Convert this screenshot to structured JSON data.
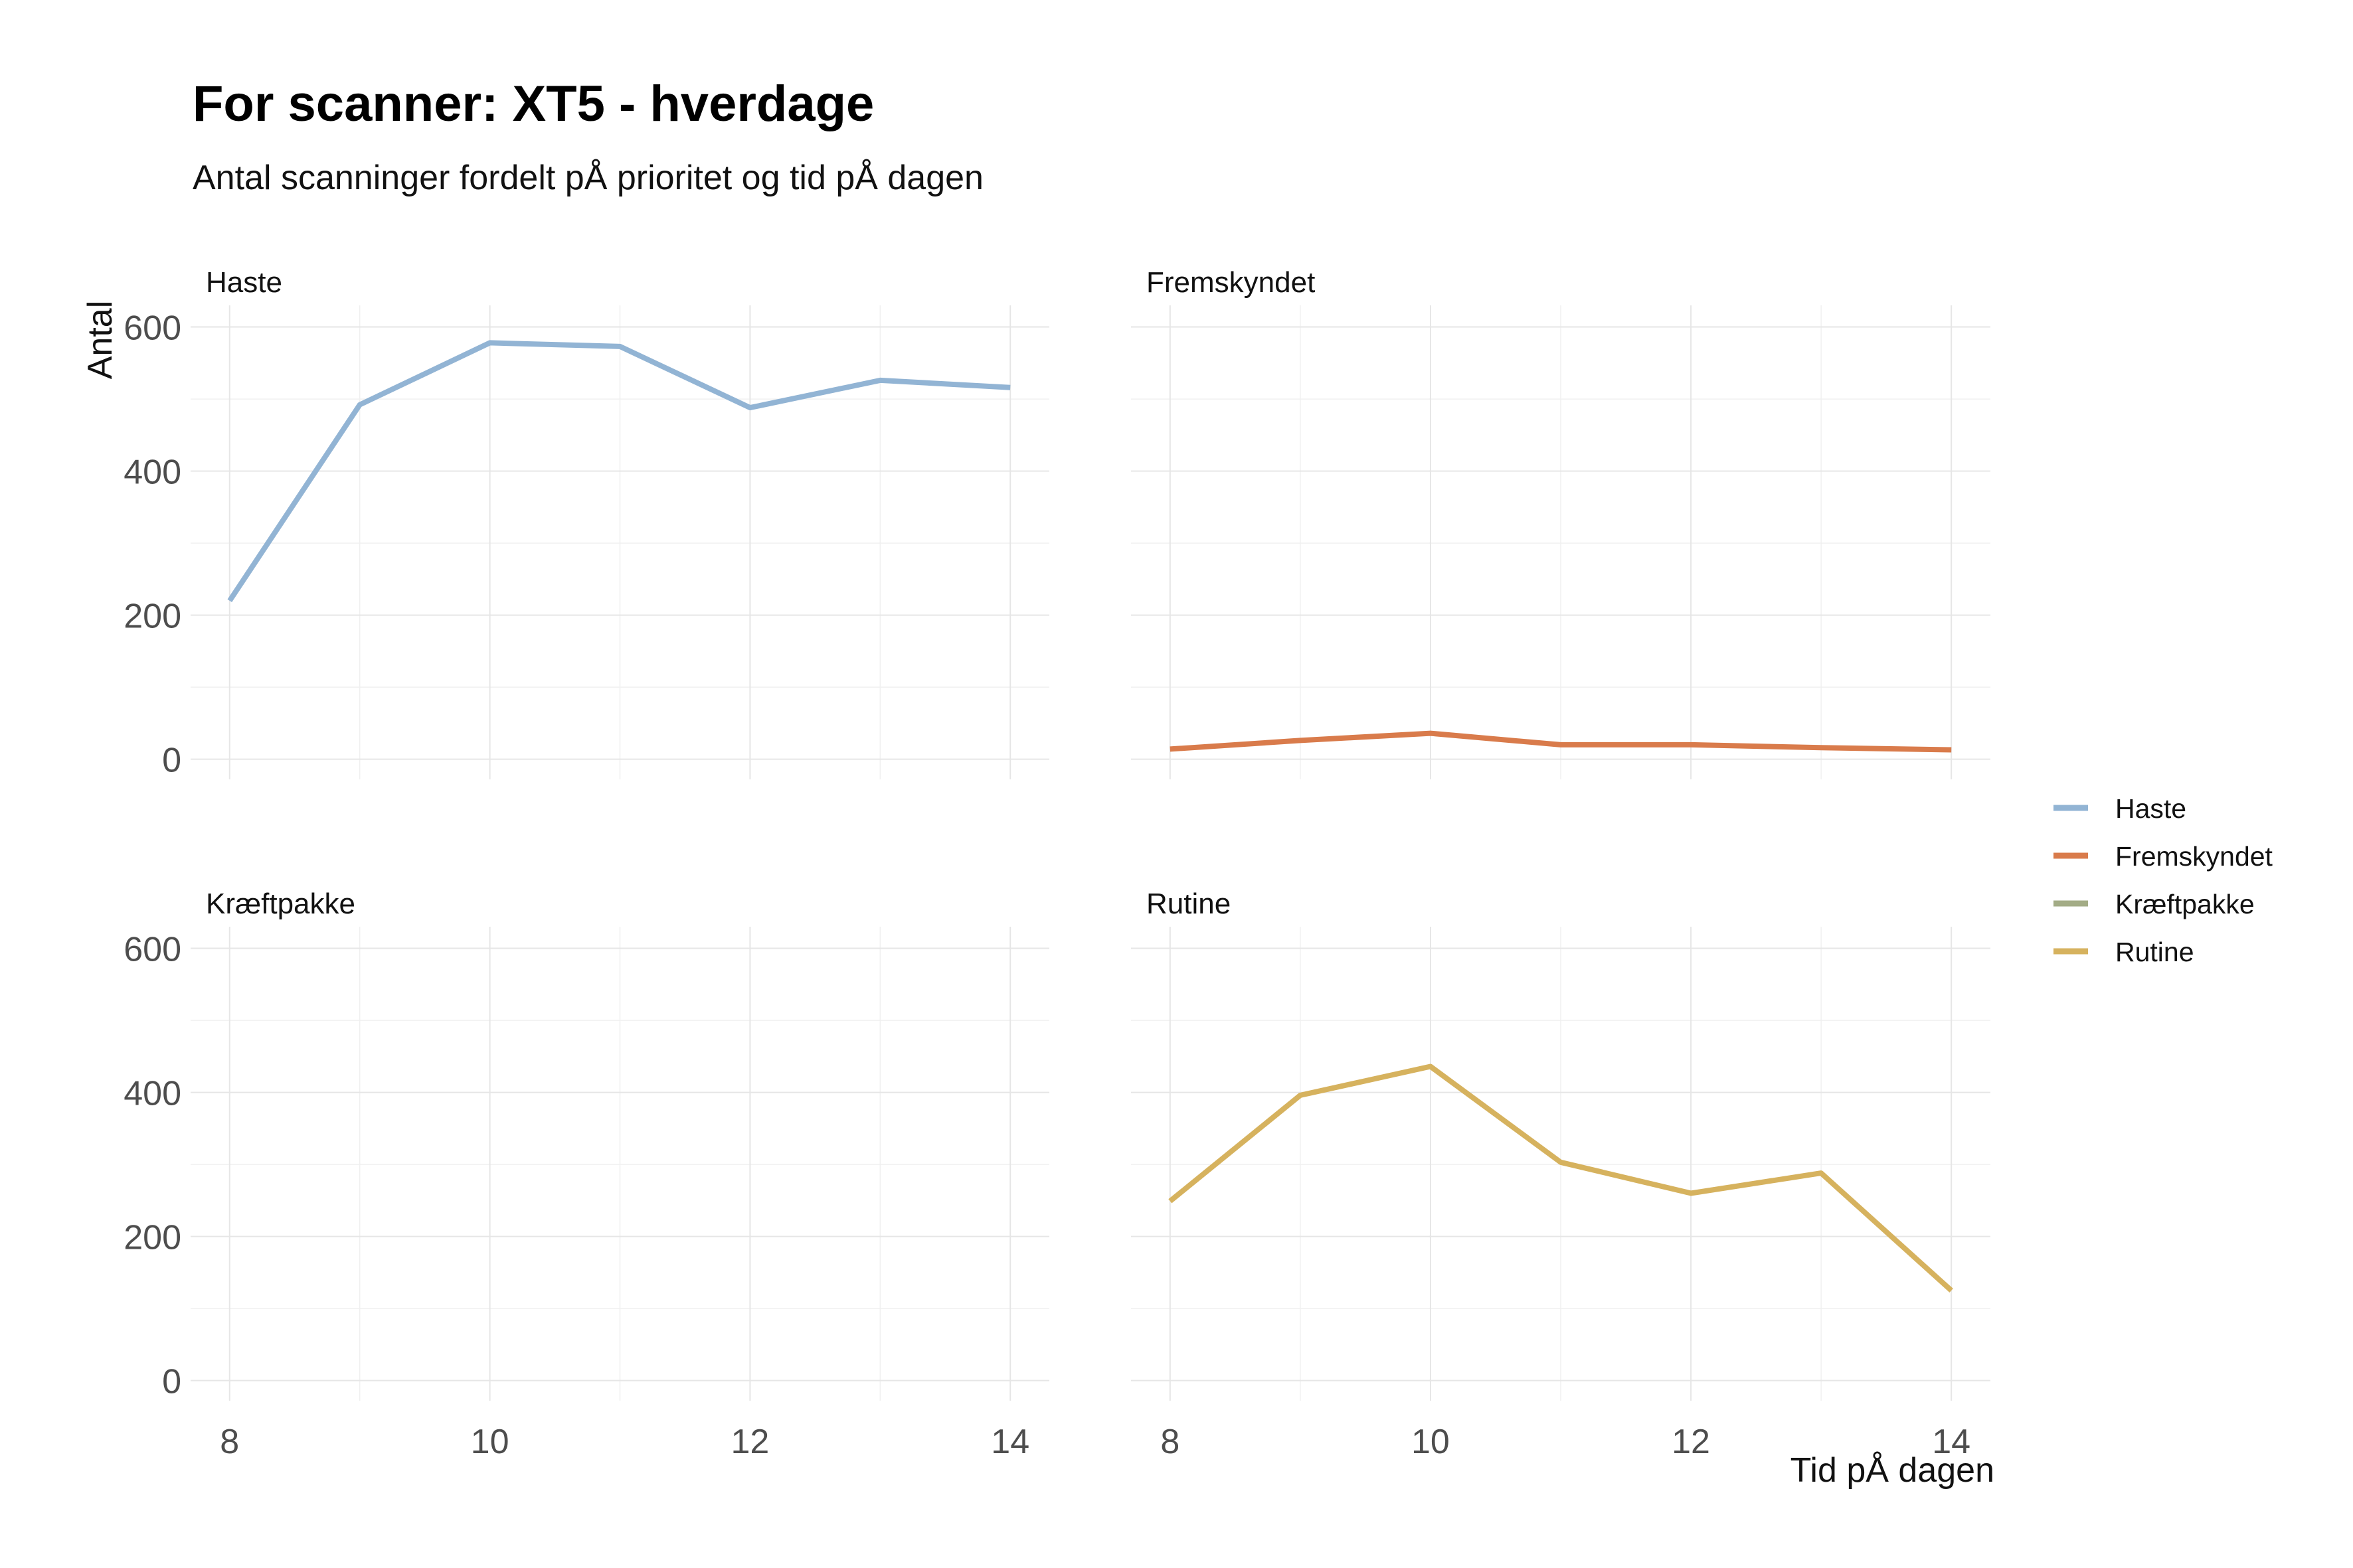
{
  "chart_data": {
    "type": "line",
    "title": "For scanner: XT5 - hverdage",
    "subtitle": "Antal scanninger fordelt pÅ prioritet og tid pÅ dagen",
    "xlabel": "Tid pÅ dagen",
    "ylabel": "Antal",
    "x": [
      8,
      9,
      10,
      11,
      12,
      13,
      14
    ],
    "x_ticks": [
      8,
      10,
      12,
      14
    ],
    "y_ticks": [
      0,
      200,
      400,
      600
    ],
    "xlim": [
      8,
      14
    ],
    "ylim": [
      0,
      600
    ],
    "grid": true,
    "legend_position": "right",
    "panels": [
      {
        "name": "Haste",
        "color": "#92b4d4",
        "values": [
          220,
          492,
          578,
          573,
          488,
          526,
          516
        ]
      },
      {
        "name": "Fremskyndet",
        "color": "#d97b4b",
        "values": [
          14,
          26,
          36,
          20,
          20,
          16,
          13
        ]
      },
      {
        "name": "Kræftpakke",
        "color": "#a3ac86",
        "values": []
      },
      {
        "name": "Rutine",
        "color": "#d6b25e",
        "values": [
          249,
          396,
          436,
          303,
          260,
          288,
          125
        ]
      }
    ]
  }
}
